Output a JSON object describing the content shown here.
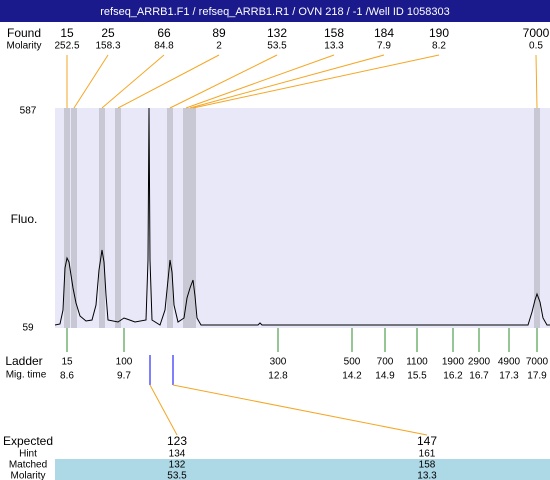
{
  "title": "refseq_ARRB1.F1 / refseq_ARRB1.R1 / OVN 218 / -1 /Well ID 1058303",
  "found": {
    "label": "Found",
    "molarity_label": "Molarity",
    "peaks": [
      {
        "size": 15,
        "molarity": 252.5
      },
      {
        "size": 25,
        "molarity": 158.3
      },
      {
        "size": 66,
        "molarity": 84.8
      },
      {
        "size": 89,
        "molarity": 2
      },
      {
        "size": 132,
        "molarity": 53.5
      },
      {
        "size": 158,
        "molarity": 13.3
      },
      {
        "size": 184,
        "molarity": 7.9
      },
      {
        "size": 190,
        "molarity": 8.2
      },
      {
        "size": 7000,
        "molarity": 0.5
      }
    ]
  },
  "axis": {
    "label": "Fluo.",
    "top": 587,
    "bottom": 59
  },
  "ladder": {
    "label": "Ladder",
    "mig_label": "Mig. time",
    "bands": [
      {
        "size": 15,
        "time": 8.6
      },
      {
        "size": 100,
        "time": 9.7
      },
      {
        "size": 300,
        "time": 12.8
      },
      {
        "size": 500,
        "time": 14.2
      },
      {
        "size": 700,
        "time": 14.9
      },
      {
        "size": 1100,
        "time": 15.5
      },
      {
        "size": 1900,
        "time": 16.2
      },
      {
        "size": 2900,
        "time": 16.7
      },
      {
        "size": 4900,
        "time": 17.3
      },
      {
        "size": 7000,
        "time": 17.9
      }
    ]
  },
  "expected": {
    "labels": [
      "Expected",
      "Hint",
      "Matched",
      "Molarity"
    ],
    "columns": [
      {
        "expected": 123,
        "hint": 134,
        "matched": 132,
        "molarity": 53.5
      },
      {
        "expected": 147,
        "hint": 161,
        "matched": 158,
        "molarity": 13.3
      }
    ]
  }
}
